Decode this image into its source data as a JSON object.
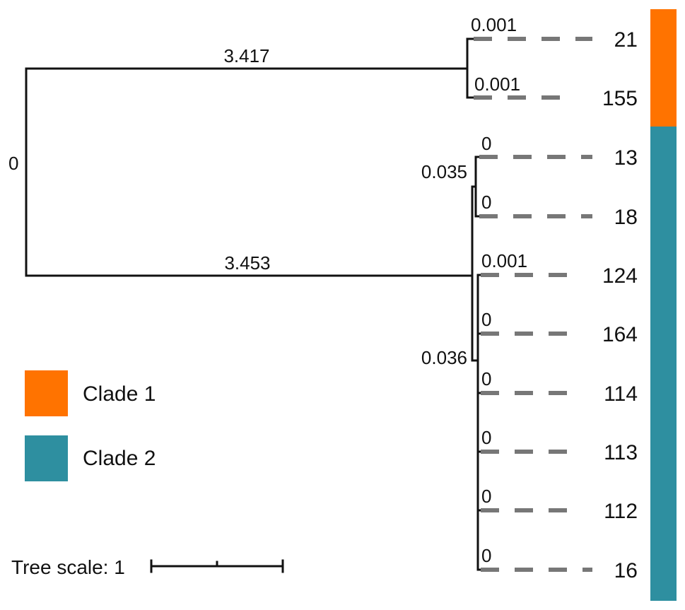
{
  "tree": {
    "root_label": "0",
    "clades": [
      {
        "id": "clade1",
        "branch_length": "3.417",
        "color": "#ff7300",
        "leaves": [
          {
            "name": "21",
            "branch_length": "0.001"
          },
          {
            "name": "155",
            "branch_length": "0.001"
          }
        ]
      },
      {
        "id": "clade2",
        "branch_length": "3.453",
        "color": "#2e8fa0",
        "subclades": [
          {
            "id": "subclade-a",
            "branch_length": "0.035",
            "leaves": [
              {
                "name": "13",
                "branch_length": "0"
              },
              {
                "name": "18",
                "branch_length": "0"
              }
            ]
          },
          {
            "id": "subclade-b",
            "branch_length": "0.036",
            "leaves": [
              {
                "name": "124",
                "branch_length": "0.001"
              },
              {
                "name": "164",
                "branch_length": "0"
              },
              {
                "name": "114",
                "branch_length": "0"
              },
              {
                "name": "113",
                "branch_length": "0"
              },
              {
                "name": "112",
                "branch_length": "0"
              },
              {
                "name": "16",
                "branch_length": "0"
              }
            ]
          }
        ]
      }
    ]
  },
  "legend": {
    "items": [
      {
        "label": "Clade 1",
        "color": "#ff7300"
      },
      {
        "label": "Clade 2",
        "color": "#2e8fa0"
      }
    ]
  },
  "scale": {
    "label": "Tree scale: 1"
  }
}
